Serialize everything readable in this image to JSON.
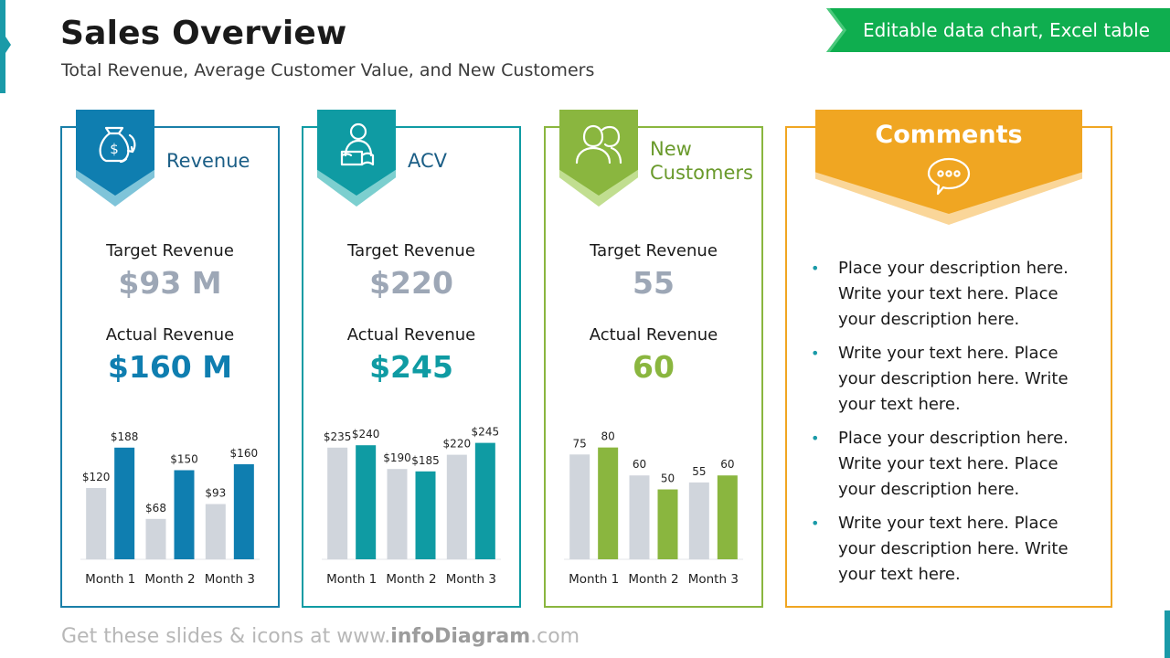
{
  "header": {
    "title": "Sales Overview",
    "subtitle": "Total Revenue, Average Customer Value, and New Customers",
    "banner": "Editable data chart, Excel table"
  },
  "colors": {
    "revenue": "#0f7eb0",
    "acv": "#0f9ba3",
    "customers": "#8ab63f",
    "comments": "#f0a622",
    "target_gray": "#9da7b6",
    "bar_gray": "#d0d5dc",
    "banner_green": "#0fae4f"
  },
  "cards": [
    {
      "title": "Revenue",
      "icon": "money-bag-dollar-icon",
      "target_label": "Target Revenue",
      "target_value": "$93 M",
      "actual_label": "Actual Revenue",
      "actual_value": "$160 M"
    },
    {
      "title": "ACV",
      "icon": "person-reading-icon",
      "target_label": "Target Revenue",
      "target_value": "$220",
      "actual_label": "Actual Revenue",
      "actual_value": "$245"
    },
    {
      "title": "New Customers",
      "icon": "two-people-icon",
      "target_label": "Target Revenue",
      "target_value": "55",
      "actual_label": "Actual Revenue",
      "actual_value": "60"
    }
  ],
  "chart_data": [
    {
      "type": "bar",
      "categories": [
        "Month 1",
        "Month 2",
        "Month 3"
      ],
      "series": [
        {
          "values": [
            120,
            68,
            93
          ],
          "labels": [
            "$120",
            "$68",
            "$93"
          ],
          "color": "#d0d5dc"
        },
        {
          "values": [
            188,
            150,
            160
          ],
          "labels": [
            "$188",
            "$150",
            "$160"
          ],
          "color": "#0f7eb0"
        }
      ],
      "ylim": [
        0,
        200
      ]
    },
    {
      "type": "bar",
      "categories": [
        "Month 1",
        "Month 2",
        "Month 3"
      ],
      "series": [
        {
          "values": [
            235,
            190,
            220
          ],
          "labels": [
            "$235",
            "$190",
            "$220"
          ],
          "color": "#d0d5dc"
        },
        {
          "values": [
            240,
            185,
            245
          ],
          "labels": [
            "$240",
            "$185",
            "$245"
          ],
          "color": "#0f9ba3"
        }
      ],
      "ylim": [
        0,
        250
      ]
    },
    {
      "type": "bar",
      "categories": [
        "Month 1",
        "Month 2",
        "Month 3"
      ],
      "series": [
        {
          "values": [
            75,
            60,
            55
          ],
          "labels": [
            "75",
            "60",
            "55"
          ],
          "color": "#d0d5dc"
        },
        {
          "values": [
            80,
            50,
            60
          ],
          "labels": [
            "80",
            "50",
            "60"
          ],
          "color": "#8ab63f"
        }
      ],
      "ylim": [
        0,
        85
      ]
    }
  ],
  "comments": {
    "title": "Comments",
    "icon": "speech-bubble-icon",
    "items": [
      "Place your description here. Write your text here. Place your description here.",
      "Write your text here. Place your description here. Write your text here.",
      "Place your description here. Write your text here. Place your description here.",
      "Write your text here. Place your description here. Write your text here."
    ]
  },
  "footer": {
    "prefix": "Get these slides & icons at www.",
    "brand": "infoDiagram",
    "suffix": ".com"
  }
}
